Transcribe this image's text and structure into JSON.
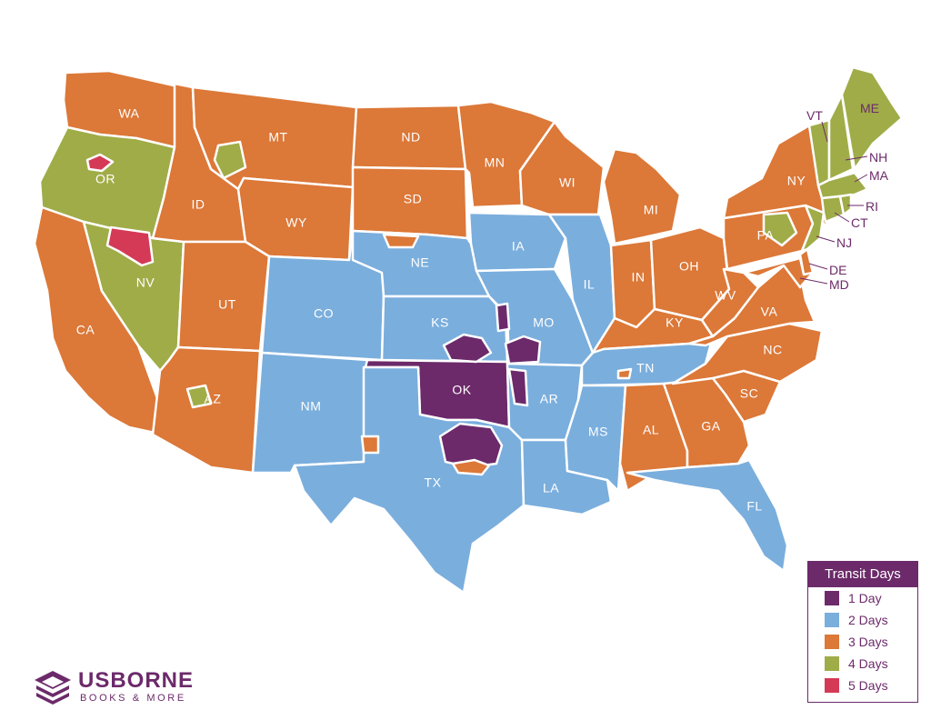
{
  "legend": {
    "title": "Transit Days",
    "items": [
      {
        "label": "1 Day",
        "color": "#6c2a6a"
      },
      {
        "label": "2 Days",
        "color": "#7aaedd"
      },
      {
        "label": "3 Days",
        "color": "#dc7838"
      },
      {
        "label": "4 Days",
        "color": "#a0ac48"
      },
      {
        "label": "5 Days",
        "color": "#d43a56"
      }
    ]
  },
  "brand": {
    "name": "USBORNE",
    "tagline": "BOOKS & MORE",
    "icon": "stacked-books-icon"
  },
  "states": {
    "WA": {
      "label": "WA",
      "transit": "3 Days"
    },
    "OR": {
      "label": "OR",
      "transit": "4 Days"
    },
    "CA": {
      "label": "CA",
      "transit": "3 Days"
    },
    "NV": {
      "label": "NV",
      "transit": "4 Days"
    },
    "ID": {
      "label": "ID",
      "transit": "3 Days"
    },
    "MT": {
      "label": "MT",
      "transit": "3 Days"
    },
    "WY": {
      "label": "WY",
      "transit": "3 Days"
    },
    "UT": {
      "label": "UT",
      "transit": "3 Days"
    },
    "AZ": {
      "label": "AZ",
      "transit": "3 Days"
    },
    "CO": {
      "label": "CO",
      "transit": "2 Days"
    },
    "NM": {
      "label": "NM",
      "transit": "2 Days"
    },
    "ND": {
      "label": "ND",
      "transit": "3 Days"
    },
    "SD": {
      "label": "SD",
      "transit": "3 Days"
    },
    "NE": {
      "label": "NE",
      "transit": "2 Days"
    },
    "KS": {
      "label": "KS",
      "transit": "2 Days"
    },
    "OK": {
      "label": "OK",
      "transit": "1 Day"
    },
    "TX": {
      "label": "TX",
      "transit": "2 Days"
    },
    "MN": {
      "label": "MN",
      "transit": "3 Days"
    },
    "IA": {
      "label": "IA",
      "transit": "2 Days"
    },
    "MO": {
      "label": "MO",
      "transit": "2 Days"
    },
    "AR": {
      "label": "AR",
      "transit": "2 Days"
    },
    "LA": {
      "label": "LA",
      "transit": "2 Days"
    },
    "WI": {
      "label": "WI",
      "transit": "3 Days"
    },
    "IL": {
      "label": "IL",
      "transit": "2 Days"
    },
    "MI": {
      "label": "MI",
      "transit": "3 Days"
    },
    "IN": {
      "label": "IN",
      "transit": "3 Days"
    },
    "OH": {
      "label": "OH",
      "transit": "3 Days"
    },
    "KY": {
      "label": "KY",
      "transit": "3 Days"
    },
    "TN": {
      "label": "TN",
      "transit": "2 Days"
    },
    "MS": {
      "label": "MS",
      "transit": "2 Days"
    },
    "AL": {
      "label": "AL",
      "transit": "3 Days"
    },
    "GA": {
      "label": "GA",
      "transit": "3 Days"
    },
    "FL": {
      "label": "FL",
      "transit": "2 Days"
    },
    "SC": {
      "label": "SC",
      "transit": "3 Days"
    },
    "NC": {
      "label": "NC",
      "transit": "3 Days"
    },
    "VA": {
      "label": "VA",
      "transit": "3 Days"
    },
    "WV": {
      "label": "WV",
      "transit": "3 Days"
    },
    "PA": {
      "label": "PA",
      "transit": "3 Days"
    },
    "NY": {
      "label": "NY",
      "transit": "3 Days"
    },
    "NJ": {
      "label": "NJ",
      "transit": "4 Days"
    },
    "DE": {
      "label": "DE",
      "transit": "3 Days"
    },
    "MD": {
      "label": "MD",
      "transit": "3 Days"
    },
    "VT": {
      "label": "VT",
      "transit": "4 Days"
    },
    "NH": {
      "label": "NH",
      "transit": "4 Days"
    },
    "ME": {
      "label": "ME",
      "transit": "4 Days"
    },
    "MA": {
      "label": "MA",
      "transit": "4 Days"
    },
    "RI": {
      "label": "RI",
      "transit": "4 Days"
    },
    "CT": {
      "label": "CT",
      "transit": "4 Days"
    }
  }
}
